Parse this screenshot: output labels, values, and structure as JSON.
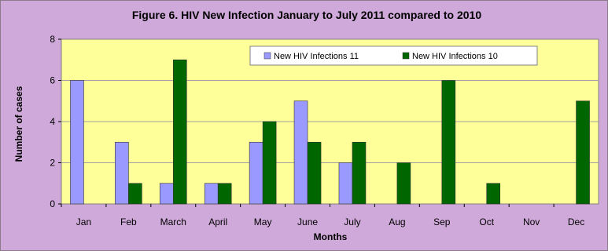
{
  "chart_data": {
    "type": "bar",
    "title": "Figure 6. HIV New Infection January to July 2011 compared to 2010",
    "xlabel": "Months",
    "ylabel": "Number of cases",
    "ylim": [
      0,
      8
    ],
    "yticks": [
      0,
      2,
      4,
      6,
      8
    ],
    "categories": [
      "Jan",
      "Feb",
      "March",
      "April",
      "May",
      "June",
      "July",
      "Aug",
      "Sep",
      "Oct",
      "Nov",
      "Dec"
    ],
    "series": [
      {
        "name": "New HIV Infections 11",
        "color": "#9999ff",
        "values": [
          6,
          3,
          1,
          1,
          3,
          5,
          2,
          null,
          null,
          null,
          null,
          null
        ]
      },
      {
        "name": "New HIV Infections 10",
        "color": "#006600",
        "values": [
          null,
          1,
          7,
          1,
          4,
          3,
          3,
          2,
          6,
          1,
          null,
          5
        ]
      }
    ],
    "legend": "top-right",
    "plot_background": "#ffff99",
    "chart_background": "#cfa9d9"
  }
}
